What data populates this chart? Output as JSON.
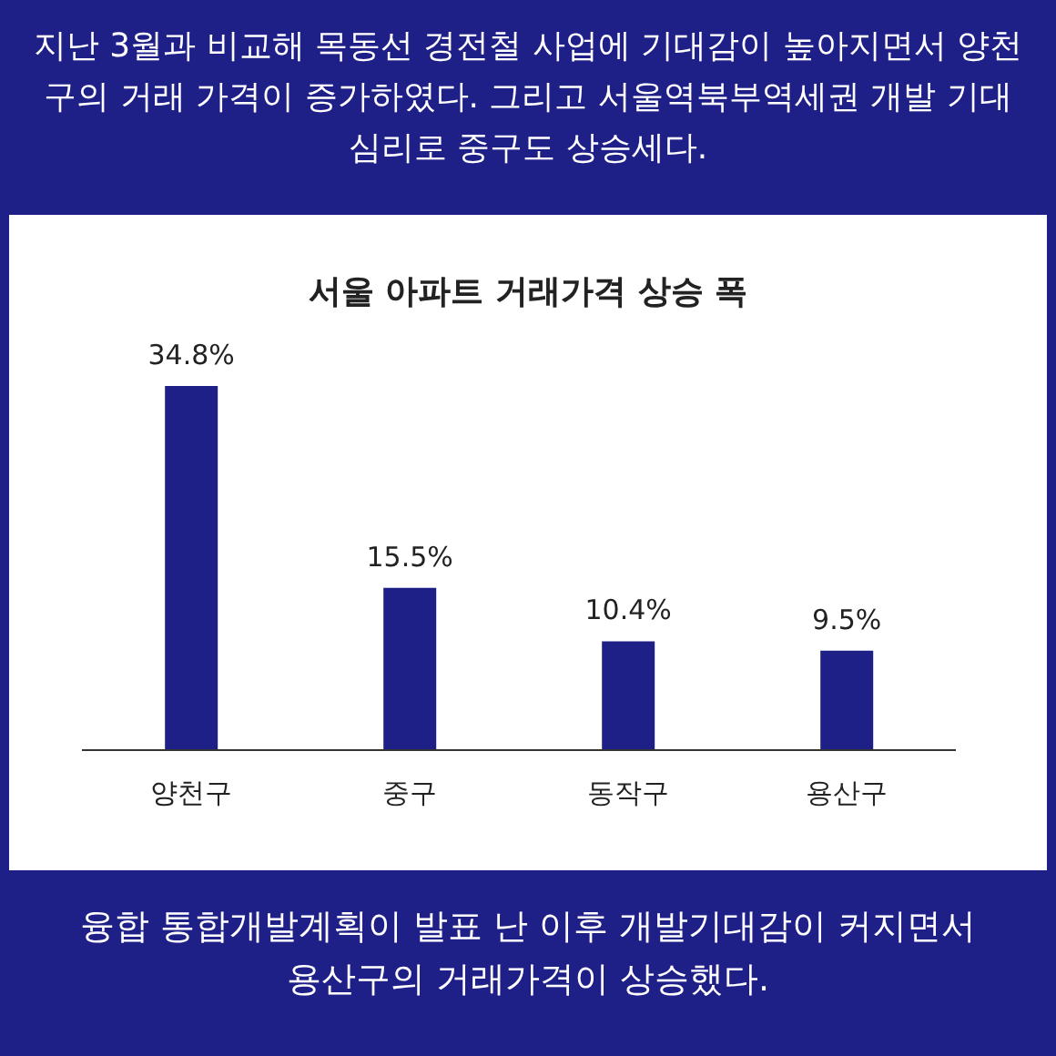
{
  "chart_data": {
    "type": "bar",
    "title": "서울 아파트 거래가격 상승 폭",
    "categories": [
      "양천구",
      "중구",
      "동작구",
      "용산구"
    ],
    "values": [
      34.8,
      15.5,
      10.4,
      9.5
    ],
    "value_labels": [
      "34.8%",
      "15.5%",
      "10.4%",
      "9.5%"
    ],
    "color": "#1f1f88",
    "grid": false,
    "legend": false,
    "annotations": [
      "지난 3월과 비교해 목동선 경전철 사업에 기대감이 높아지면서 양천구의 거래 가격이 증가하였다. 그리고 서울역북부역세권 개발 기대심리로 중구도 상승세다.",
      "융합 통합개발계획이 발표 난 이후 개발기대감이 커지면서 용산구의 거래가격이 상승했다."
    ]
  }
}
